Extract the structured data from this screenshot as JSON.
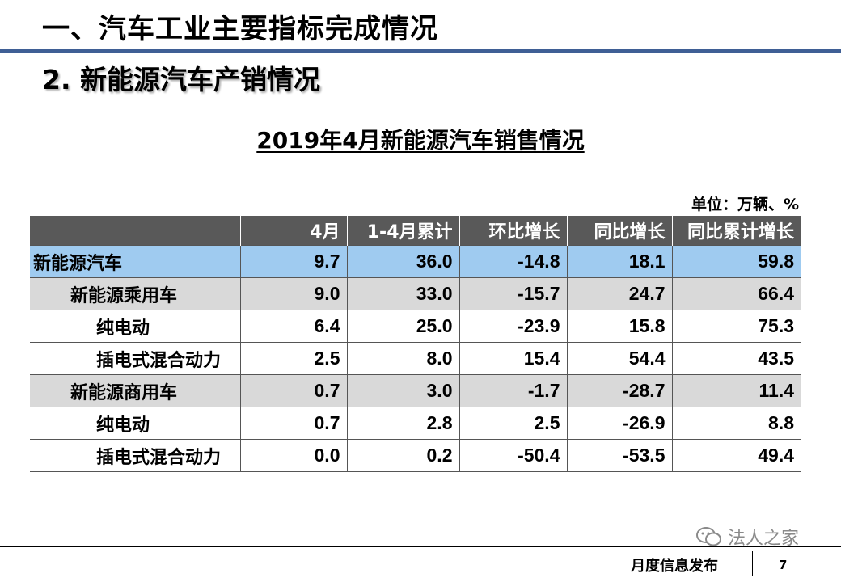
{
  "header": {
    "slide_title": "一、汽车工业主要指标完成情况",
    "section_title": "2. 新能源汽车产销情况"
  },
  "table": {
    "title": "2019年4月新能源汽车销售情况",
    "unit_note": "单位：万辆、%",
    "columns": [
      "",
      "4月",
      "1-4月累计",
      "环比增长",
      "同比增长",
      "同比累计增长"
    ],
    "rows": [
      {
        "name": "新能源汽车",
        "values": [
          "9.7",
          "36.0",
          "-14.8",
          "18.1",
          "59.8"
        ]
      },
      {
        "name": "新能源乘用车",
        "values": [
          "9.0",
          "33.0",
          "-15.7",
          "24.7",
          "66.4"
        ]
      },
      {
        "name": "纯电动",
        "values": [
          "6.4",
          "25.0",
          "-23.9",
          "15.8",
          "75.3"
        ]
      },
      {
        "name": "插电式混合动力",
        "values": [
          "2.5",
          "8.0",
          "15.4",
          "54.4",
          "43.5"
        ]
      },
      {
        "name": "新能源商用车",
        "values": [
          "0.7",
          "3.0",
          "-1.7",
          "-28.7",
          "11.4"
        ]
      },
      {
        "name": "纯电动",
        "values": [
          "0.7",
          "2.8",
          "2.5",
          "-26.9",
          "8.8"
        ]
      },
      {
        "name": "插电式混合动力",
        "values": [
          "0.0",
          "0.2",
          "-50.4",
          "-53.5",
          "49.4"
        ]
      }
    ]
  },
  "footer": {
    "label": "月度信息发布",
    "page_number": "7",
    "watermark": "法人之家",
    "watermark_icon": "wechat-icon"
  }
}
